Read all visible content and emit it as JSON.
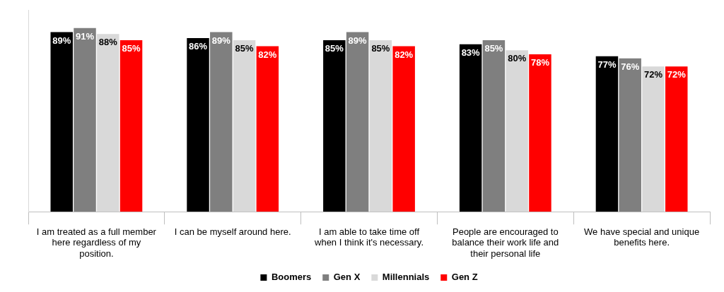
{
  "chart_data": {
    "type": "bar",
    "categories": [
      "I am treated as a full member here regardless of my position.",
      "I can be myself around here.",
      "I am able to take time off when I think it's necessary.",
      "People are encouraged to balance their work life and their personal life",
      "We have special and unique benefits here."
    ],
    "series": [
      {
        "name": "Boomers",
        "color": "#000000",
        "values": [
          89,
          86,
          85,
          83,
          77
        ],
        "value_labels": [
          "89%",
          "86%",
          "85%",
          "83%",
          "77%"
        ]
      },
      {
        "name": "Gen X",
        "color": "#7f7f7f",
        "values": [
          91,
          89,
          89,
          85,
          76
        ],
        "value_labels": [
          "91%",
          "89%",
          "89%",
          "85%",
          "76%"
        ]
      },
      {
        "name": "Millennials",
        "color": "#d9d9d9",
        "values": [
          88,
          85,
          85,
          80,
          72
        ],
        "value_labels": [
          "88%",
          "85%",
          "85%",
          "80%",
          "72%"
        ]
      },
      {
        "name": "Gen Z",
        "color": "#ff0000",
        "values": [
          85,
          82,
          82,
          78,
          72
        ],
        "value_labels": [
          "85%",
          "82%",
          "82%",
          "78%",
          "72%"
        ]
      }
    ],
    "ylim": [
      0,
      100
    ],
    "grid": false,
    "legend": "bottom",
    "data_labels": true,
    "tick_labels": "x"
  }
}
